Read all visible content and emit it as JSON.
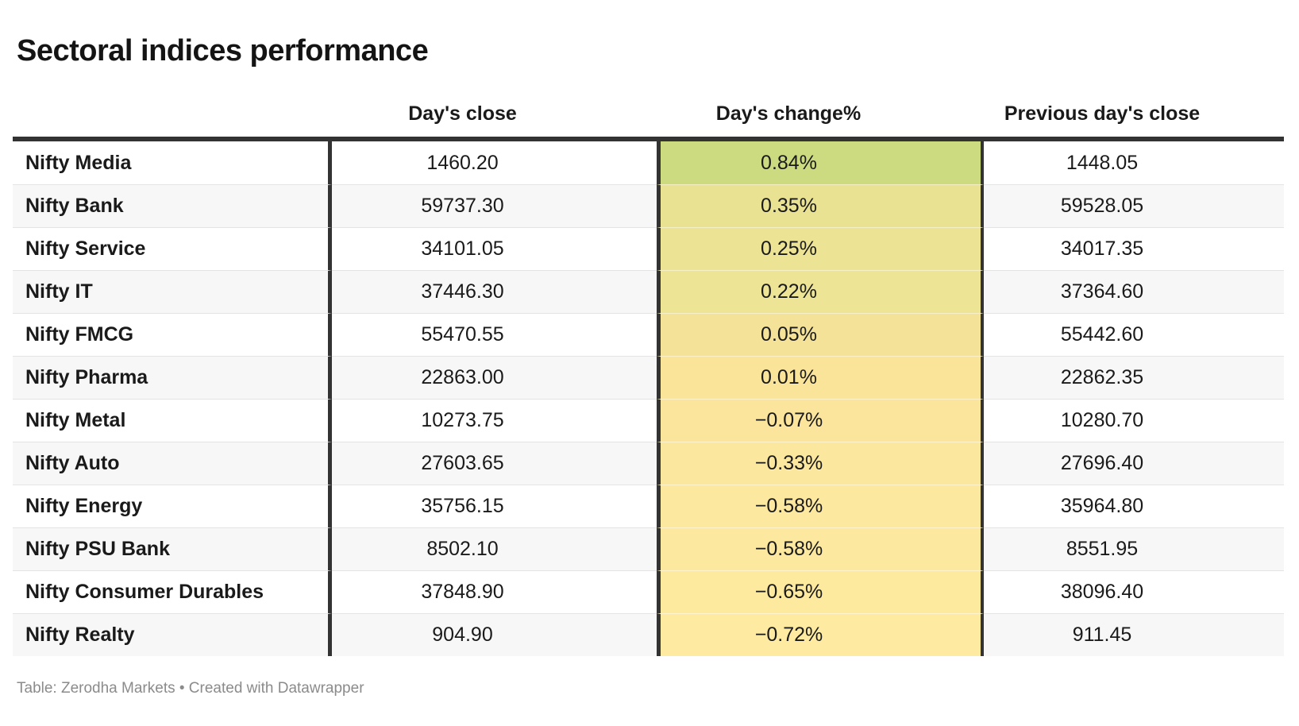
{
  "title": "Sectoral indices performance",
  "table": {
    "columns": [
      {
        "label": ""
      },
      {
        "label": "Day's close"
      },
      {
        "label": "Day's change%"
      },
      {
        "label": "Previous day's close"
      }
    ],
    "rows": [
      {
        "label": "Nifty Media",
        "close": "1460.20",
        "change": "0.84%",
        "prev": "1448.05",
        "change_bg": "#cddb80"
      },
      {
        "label": "Nifty Bank",
        "close": "59737.30",
        "change": "0.35%",
        "prev": "59528.05",
        "change_bg": "#e9e292"
      },
      {
        "label": "Nifty Service",
        "close": "34101.05",
        "change": "0.25%",
        "prev": "34017.35",
        "change_bg": "#ece394"
      },
      {
        "label": "Nifty IT",
        "close": "37446.30",
        "change": "0.22%",
        "prev": "37364.60",
        "change_bg": "#ede495"
      },
      {
        "label": "Nifty FMCG",
        "close": "55470.55",
        "change": "0.05%",
        "prev": "55442.60",
        "change_bg": "#f5e299"
      },
      {
        "label": "Nifty Pharma",
        "close": "22863.00",
        "change": "0.01%",
        "prev": "22862.35",
        "change_bg": "#fae49a"
      },
      {
        "label": "Nifty Metal",
        "close": "10273.75",
        "change": "−0.07%",
        "prev": "10280.70",
        "change_bg": "#fbe59c"
      },
      {
        "label": "Nifty Auto",
        "close": "27603.65",
        "change": "−0.33%",
        "prev": "27696.40",
        "change_bg": "#fce79e"
      },
      {
        "label": "Nifty Energy",
        "close": "35756.15",
        "change": "−0.58%",
        "prev": "35964.80",
        "change_bg": "#fde89f"
      },
      {
        "label": "Nifty PSU Bank",
        "close": "8502.10",
        "change": "−0.58%",
        "prev": "8551.95",
        "change_bg": "#fde89f"
      },
      {
        "label": "Nifty Consumer Durables",
        "close": "37848.90",
        "change": "−0.65%",
        "prev": "38096.40",
        "change_bg": "#fdea9f"
      },
      {
        "label": "Nifty Realty",
        "close": "904.90",
        "change": "−0.72%",
        "prev": "911.45",
        "change_bg": "#feeba1"
      }
    ]
  },
  "footer": {
    "text": "Table: Zerodha Markets • Created with Datawrapper"
  },
  "colors": {
    "border_dark": "#333333",
    "row_stripe": "#f7f7f7",
    "row_separator": "#e4e4e4",
    "text": "#1a1a1a",
    "footer_text": "#8b8b8b",
    "heatmap_positive_max": "#cddb80",
    "heatmap_negative_min": "#feeba1"
  },
  "chart_data": {
    "type": "table",
    "title": "Sectoral indices performance",
    "columns": [
      "",
      "Day's close",
      "Day's change%",
      "Previous day's close"
    ],
    "rows": [
      [
        "Nifty Media",
        1460.2,
        0.84,
        1448.05
      ],
      [
        "Nifty Bank",
        59737.3,
        0.35,
        59528.05
      ],
      [
        "Nifty Service",
        34101.05,
        0.25,
        34017.35
      ],
      [
        "Nifty IT",
        37446.3,
        0.22,
        37364.6
      ],
      [
        "Nifty FMCG",
        55470.55,
        0.05,
        55442.6
      ],
      [
        "Nifty Pharma",
        22863.0,
        0.01,
        22862.35
      ],
      [
        "Nifty Metal",
        10273.75,
        -0.07,
        10280.7
      ],
      [
        "Nifty Auto",
        27603.65,
        -0.33,
        27696.4
      ],
      [
        "Nifty Energy",
        35756.15,
        -0.58,
        35964.8
      ],
      [
        "Nifty PSU Bank",
        8502.1,
        -0.58,
        8551.95
      ],
      [
        "Nifty Consumer Durables",
        37848.9,
        -0.65,
        38096.4
      ],
      [
        "Nifty Realty",
        904.9,
        -0.72,
        911.45
      ]
    ],
    "heatmap_column": "Day's change%",
    "heatmap_range": [
      -0.72,
      0.84
    ],
    "annotations": "Table: Zerodha Markets • Created with Datawrapper"
  }
}
